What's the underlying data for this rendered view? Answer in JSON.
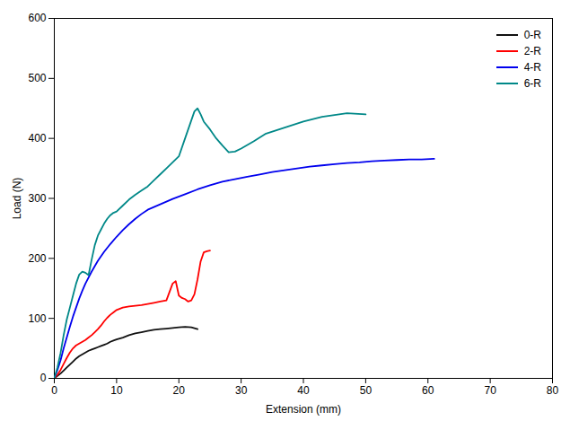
{
  "chart_data": {
    "type": "line",
    "title": "",
    "xlabel": "Extension (mm)",
    "ylabel": "Load (N)",
    "xlim": [
      0,
      80
    ],
    "ylim": [
      0,
      600
    ],
    "xticks": [
      0,
      10,
      20,
      30,
      40,
      50,
      60,
      70,
      80
    ],
    "yticks": [
      0,
      100,
      200,
      300,
      400,
      500,
      600
    ],
    "grid": false,
    "legend": "upper right",
    "series": [
      {
        "name": "0-R",
        "color": "#111111",
        "x": [
          0,
          0.5,
          1,
          1.5,
          2,
          2.5,
          3,
          3.5,
          4,
          4.5,
          5,
          5.5,
          6,
          6.5,
          7,
          7.5,
          8,
          8.5,
          9,
          9.5,
          10,
          11,
          12,
          13,
          14,
          15,
          16,
          17,
          18,
          19,
          20,
          21,
          22,
          23
        ],
        "values": [
          0,
          4,
          8,
          13,
          18,
          23,
          28,
          33,
          37,
          40,
          43,
          46,
          48,
          50,
          52,
          54,
          56,
          58,
          61,
          63,
          65,
          68,
          72,
          75,
          77,
          79,
          81,
          82,
          83,
          84,
          85,
          86,
          85,
          82
        ]
      },
      {
        "name": "2-R",
        "color": "#ff0000",
        "x": [
          0,
          0.5,
          1,
          1.5,
          2,
          2.5,
          3,
          3.5,
          4,
          4.5,
          5,
          5.5,
          6,
          6.5,
          7,
          7.5,
          8,
          8.5,
          9,
          9.5,
          10,
          11,
          12,
          13,
          14,
          15,
          16,
          17,
          18,
          19,
          19.5,
          20,
          20.5,
          21,
          21.5,
          22,
          22.5,
          23,
          23.5,
          24,
          24.5,
          25
        ],
        "values": [
          0,
          6,
          14,
          24,
          34,
          43,
          50,
          55,
          58,
          61,
          64,
          68,
          72,
          77,
          82,
          88,
          95,
          101,
          106,
          110,
          114,
          118,
          120,
          121,
          122,
          124,
          126,
          128,
          130,
          158,
          162,
          138,
          134,
          132,
          128,
          130,
          140,
          165,
          195,
          210,
          212,
          213
        ]
      },
      {
        "name": "4-R",
        "color": "#0000ee",
        "x": [
          0,
          0.5,
          1,
          1.5,
          2,
          2.5,
          3,
          3.5,
          4,
          4.5,
          5,
          6,
          7,
          8,
          9,
          10,
          11,
          12,
          13,
          14,
          15,
          17,
          19,
          21,
          23,
          25,
          27,
          29,
          31,
          33,
          35,
          37,
          39,
          41,
          43,
          45,
          47,
          49,
          51,
          53,
          55,
          57,
          59,
          61
        ],
        "values": [
          0,
          14,
          30,
          50,
          68,
          86,
          103,
          118,
          133,
          146,
          158,
          178,
          196,
          211,
          224,
          236,
          247,
          257,
          266,
          274,
          281,
          290,
          299,
          307,
          315,
          322,
          328,
          332,
          336,
          340,
          344,
          347,
          350,
          353,
          355,
          357,
          359,
          360,
          362,
          363,
          364,
          365,
          365,
          366
        ]
      },
      {
        "name": "6-R",
        "color": "#008888",
        "x": [
          0,
          0.5,
          1,
          1.5,
          2,
          2.5,
          3,
          3.5,
          4,
          4.5,
          5,
          5.5,
          6,
          6.5,
          7,
          7.5,
          8,
          8.5,
          9,
          9.5,
          10,
          11,
          12,
          13,
          14,
          15,
          16,
          17,
          18,
          19,
          20,
          21,
          21.5,
          22,
          22.5,
          23,
          23.5,
          24,
          25,
          26,
          27,
          28,
          29,
          30,
          32,
          34,
          37,
          40,
          43,
          47,
          50
        ],
        "values": [
          0,
          18,
          42,
          72,
          98,
          118,
          138,
          158,
          173,
          178,
          176,
          172,
          198,
          222,
          238,
          248,
          258,
          266,
          272,
          276,
          278,
          288,
          298,
          306,
          313,
          320,
          330,
          340,
          350,
          360,
          370,
          400,
          415,
          430,
          445,
          450,
          440,
          428,
          415,
          400,
          388,
          377,
          378,
          383,
          395,
          408,
          418,
          428,
          436,
          442,
          440
        ]
      }
    ]
  }
}
